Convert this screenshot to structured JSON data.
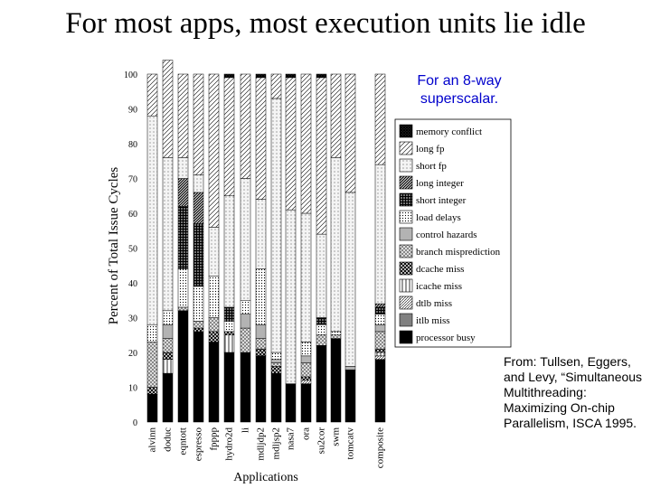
{
  "slide": {
    "title": "For most apps, most execution units lie idle",
    "annotation": "For an 8-way superscalar.",
    "citation": "From: Tullsen, Eggers, and Levy, “Simultaneous Multithreading: Maximizing On-chip Parallelism, ISCA 1995."
  },
  "chart_data": {
    "type": "bar",
    "stacked": true,
    "xlabel": "Applications",
    "ylabel": "Percent of Total Issue Cycles",
    "ylim": [
      0,
      100
    ],
    "yticks": [
      0,
      10,
      20,
      30,
      40,
      50,
      60,
      70,
      80,
      90,
      100
    ],
    "legend_position": "right",
    "categories": [
      "alvinn",
      "doduc",
      "eqntott",
      "espresso",
      "fpppp",
      "hydro2d",
      "li",
      "mdljdp2",
      "mdljsp2",
      "nasa7",
      "ora",
      "su2cor",
      "swm",
      "tomcatv",
      "composite"
    ],
    "series": [
      {
        "name": "processor busy",
        "color": "#000000",
        "pattern": "solid-black",
        "values": [
          8,
          14,
          32,
          26,
          23,
          20,
          20,
          19,
          14,
          11,
          11,
          22,
          24,
          15,
          18
        ]
      },
      {
        "name": "itlb miss",
        "color": "#808080",
        "pattern": "solid-gray",
        "values": [
          0,
          0,
          0,
          0,
          0,
          0,
          0,
          0,
          0,
          0,
          0,
          0,
          0,
          0,
          0
        ]
      },
      {
        "name": "dtlb miss",
        "color": "#ffffff",
        "pattern": "fine-diagonal",
        "values": [
          0,
          0,
          0,
          0,
          0,
          0,
          0,
          0,
          0,
          0,
          1,
          0,
          0,
          0,
          1
        ]
      },
      {
        "name": "icache miss",
        "color": "#ffffff",
        "pattern": "vertical-lines",
        "values": [
          0,
          4,
          0,
          0,
          0,
          5,
          0,
          0,
          0,
          0,
          0,
          0,
          0,
          0,
          1
        ]
      },
      {
        "name": "dcache miss",
        "color": "#444444",
        "pattern": "crosshatch-dark",
        "values": [
          2,
          2,
          0,
          1,
          3,
          1,
          0,
          2,
          2,
          0,
          1,
          0,
          0,
          0,
          1
        ]
      },
      {
        "name": "branch misprediction",
        "color": "#cccccc",
        "pattern": "checker-gray",
        "values": [
          13,
          4,
          1,
          2,
          4,
          0,
          7,
          3,
          1,
          0,
          4,
          3,
          1,
          0,
          5
        ]
      },
      {
        "name": "control hazards",
        "color": "#b3b3b3",
        "pattern": "solid-lightgray",
        "values": [
          0,
          4,
          0,
          0,
          0,
          0,
          4,
          4,
          1,
          0,
          2,
          0,
          0,
          1,
          2
        ]
      },
      {
        "name": "load delays",
        "color": "#eeeeee",
        "pattern": "dots",
        "values": [
          5,
          4,
          11,
          10,
          12,
          3,
          4,
          16,
          2,
          0,
          4,
          3,
          1,
          0,
          3
        ]
      },
      {
        "name": "short integer",
        "color": "#555555",
        "pattern": "grid-dark",
        "values": [
          0,
          0,
          18,
          18,
          0,
          4,
          0,
          0,
          0,
          0,
          0,
          2,
          0,
          0,
          2
        ]
      },
      {
        "name": "long integer",
        "color": "#666666",
        "pattern": "dense-diagonal",
        "values": [
          0,
          0,
          8,
          9,
          0,
          0,
          0,
          0,
          0,
          0,
          0,
          0,
          0,
          0,
          1
        ]
      },
      {
        "name": "short fp",
        "color": "#e0e0e0",
        "pattern": "sparse-dots",
        "values": [
          60,
          44,
          6,
          5,
          14,
          32,
          35,
          20,
          73,
          50,
          37,
          24,
          50,
          50,
          40
        ]
      },
      {
        "name": "long fp",
        "color": "#ffffff",
        "pattern": "coarse-diagonal",
        "values": [
          12,
          28,
          24,
          29,
          44,
          34,
          30,
          35,
          7,
          38,
          40,
          45,
          24,
          34,
          26
        ]
      },
      {
        "name": "memory conflict",
        "color": "#333333",
        "pattern": "dark-hatch",
        "values": [
          0,
          0,
          0,
          0,
          0,
          1,
          0,
          1,
          0,
          1,
          0,
          1,
          0,
          0,
          0
        ]
      }
    ]
  }
}
